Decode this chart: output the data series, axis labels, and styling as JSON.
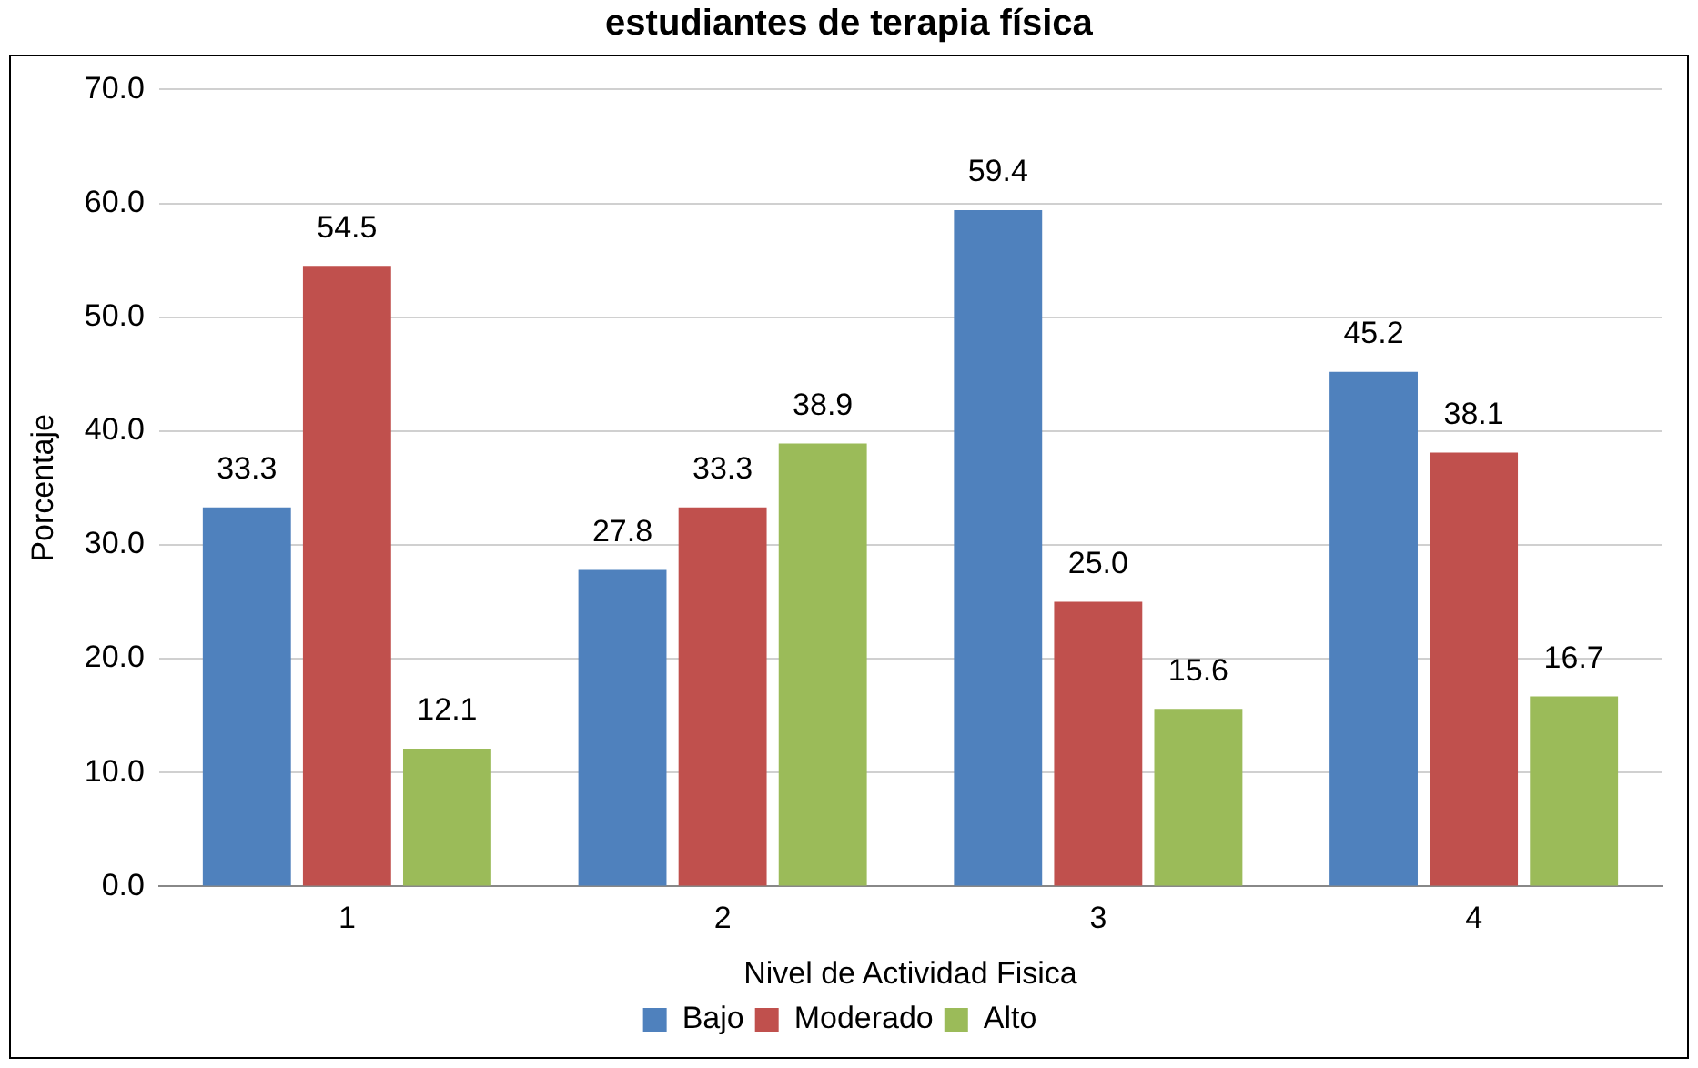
{
  "chart_data": {
    "type": "bar",
    "title": "estudiantes de terapia física",
    "xlabel": "Nivel de Actividad Fisica",
    "ylabel": "Porcentaje",
    "categories": [
      "1",
      "2",
      "3",
      "4"
    ],
    "series": [
      {
        "name": "Bajo",
        "color": "#4f81bd",
        "values": [
          33.3,
          27.8,
          59.4,
          45.2
        ],
        "value_labels": [
          "33.3",
          "27.8",
          "59.4",
          "45.2"
        ]
      },
      {
        "name": "Moderado",
        "color": "#c0504d",
        "values": [
          54.5,
          33.3,
          25,
          38.1
        ],
        "value_labels": [
          "54.5",
          "33.3",
          "25.0",
          "38.1"
        ]
      },
      {
        "name": "Alto",
        "color": "#9bbb59",
        "values": [
          12.1,
          38.9,
          15.6,
          16.7
        ],
        "value_labels": [
          "12.1",
          "38.9",
          "15.6",
          "16.7"
        ]
      }
    ],
    "ylim": [
      0,
      70
    ],
    "yticks": [
      {
        "value": 0,
        "label": "0.0"
      },
      {
        "value": 10,
        "label": "10.0"
      },
      {
        "value": 20,
        "label": "20.0"
      },
      {
        "value": 30,
        "label": "30.0"
      },
      {
        "value": 40,
        "label": "40.0"
      },
      {
        "value": 50,
        "label": "50.0"
      },
      {
        "value": 60,
        "label": "60.0"
      },
      {
        "value": 70,
        "label": "70.0"
      }
    ],
    "grid": "y",
    "legend": "bottom"
  }
}
